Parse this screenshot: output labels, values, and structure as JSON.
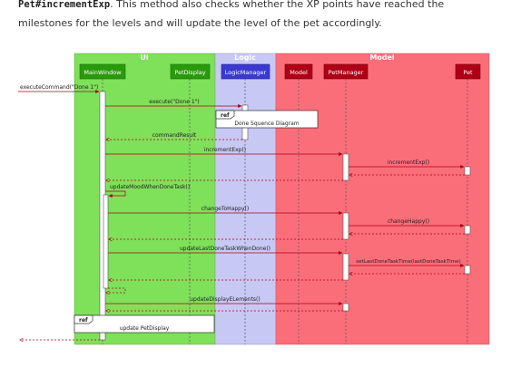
{
  "intro": {
    "code": "Pet#incrementExp",
    "line1_rest": ". This method also checks whether the XP points have reached the",
    "line2": "milestones for the levels and will update the level of the pet accordingly."
  },
  "diagram": {
    "groups": {
      "ui": "Ui",
      "logic": "Logic",
      "model": "Model"
    },
    "participants": {
      "main_window": "MainWindow",
      "pet_display": "PetDisplay",
      "logic_manager": "LogicManager",
      "model": "Model",
      "pet_manager": "PetManager",
      "pet": "Pet"
    },
    "messages": {
      "execute_command": "executeCommand(\"Done 1\")",
      "execute": "execute(\"Done 1\")",
      "command_result": "commandResult",
      "increment_exp_pm": "incrementExp()",
      "increment_exp_pet": "incrementExp()",
      "update_mood": "updateMoodWhenDoneTask()",
      "change_to_happy": "changeToHappy()",
      "change_happy": "changeHappy()",
      "update_last_done": "updateLastDoneTaskWhenDone()",
      "set_last_done": "setLastDoneTaskTime(lastDoneTaskTime)",
      "update_display": "updateDisplayELements()"
    },
    "refs": {
      "ref_tag_1": "ref",
      "done_sequence": "Done Squence Diagram",
      "ref_tag_2": "ref",
      "update_pet_display": "update PetDisplay"
    },
    "colors": {
      "ui_bg": "#7fe05a",
      "logic_bg": "#c8c8f4",
      "model_bg": "#fa6e7a",
      "ui_participant": "#2a9a0d",
      "logic_participant": "#3a3ad0",
      "model_participant": "#b00015",
      "arrow": "#b00015"
    }
  }
}
